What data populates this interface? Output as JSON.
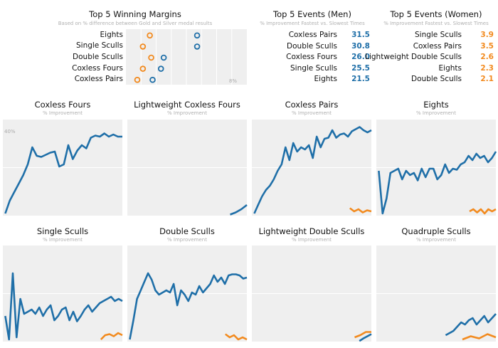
{
  "margins": {
    "title": "Top 5 Winning Margins",
    "subtitle": "Based on % difference between Gold and Silver medal results",
    "axis_max_label": "8%"
  },
  "men": {
    "title": "Top 5  Events (Men)",
    "subtitle": "% Improvement Fastest vs. Slowest Times"
  },
  "women": {
    "title": "Top 5  Events (Women)",
    "subtitle": "% Improvement Fastest vs. Slowest Times"
  },
  "panel_subtitle": "% Improvement",
  "y_tick_label": "40%",
  "colors": {
    "men": "#1f6fa8",
    "women": "#f28a1e",
    "panel_bg": "#efefef",
    "grid": "#ffffff"
  },
  "chart_data": [
    {
      "type": "scatter",
      "id": "winning-margins",
      "categories": [
        "Eights",
        "Single Sculls",
        "Double Sculls",
        "Coxless Fours",
        "Coxless Pairs"
      ],
      "series": [
        {
          "name": "",
          "values": [
            0.9,
            0.4,
            1.0,
            0.4,
            0.0
          ]
        },
        {
          "name": "",
          "values": [
            4.3,
            4.3,
            1.9,
            1.7,
            1.1
          ]
        }
      ],
      "xlim": [
        0,
        8
      ],
      "grid": true
    },
    {
      "type": "table",
      "id": "men-events",
      "rows": [
        {
          "event": "Coxless Pairs",
          "value": "31.5"
        },
        {
          "event": "Double Sculls",
          "value": "30.8"
        },
        {
          "event": "Coxless Fours",
          "value": "26.0"
        },
        {
          "event": "Single Sculls",
          "value": "25.5"
        },
        {
          "event": "Eights",
          "value": "21.5"
        }
      ]
    },
    {
      "type": "table",
      "id": "women-events",
      "rows": [
        {
          "event": "Single Sculls",
          "value": "3.9"
        },
        {
          "event": "Coxless Pairs",
          "value": "3.5"
        },
        {
          "event": "Lightweight Double Sculls",
          "value": "2.6"
        },
        {
          "event": "Eights",
          "value": "2.3"
        },
        {
          "event": "Double Sculls",
          "value": "2.1"
        }
      ]
    },
    {
      "type": "line",
      "panels": [
        {
          "title": "Coxless Fours",
          "men": [
            1,
            7,
            11,
            15,
            19,
            24,
            32,
            28,
            27.5,
            28.5,
            29.5,
            30,
            23,
            24,
            33,
            26.5,
            30.5,
            33,
            31.5,
            36.5,
            37.5,
            37,
            38.5,
            37,
            38,
            37,
            37
          ],
          "women": []
        },
        {
          "title": "Lightweight Coxless Fours",
          "men": [
            0.5,
            1.5,
            3,
            5
          ],
          "women": []
        },
        {
          "title": "Coxless Pairs",
          "men": [
            1,
            5,
            9,
            12,
            14,
            17,
            21,
            24,
            32,
            26,
            34,
            30,
            32,
            31,
            33,
            27,
            37,
            32,
            36,
            36.5,
            40,
            36.5,
            38,
            38.5,
            37,
            39.5,
            40.5,
            41.5,
            40,
            39,
            40
          ],
          "women": [
            3.5,
            2,
            3,
            1.5,
            2.5,
            2
          ]
        },
        {
          "title": "Eights",
          "men": [
            21,
            1,
            8,
            20,
            21,
            22,
            17,
            21,
            19,
            20,
            16.5,
            22,
            18,
            22,
            22,
            17,
            19,
            24,
            20,
            22,
            21.5,
            24,
            25,
            28,
            26,
            29,
            27,
            28,
            25,
            27,
            30
          ],
          "women": [
            2,
            3,
            1.5,
            3,
            1,
            3,
            2,
            3
          ]
        },
        {
          "title": "Single Sculls",
          "men": [
            12,
            1,
            32,
            2,
            20,
            13,
            14,
            15,
            13,
            16,
            12,
            15,
            17,
            10,
            12,
            15,
            16,
            10,
            14,
            9.5,
            12,
            15,
            17,
            14,
            16,
            18,
            19,
            20,
            21,
            19,
            20,
            19
          ],
          "women": [
            1,
            3,
            3.5,
            2.5,
            4,
            3
          ]
        },
        {
          "title": "Double Sculls",
          "men": [
            1,
            10,
            20,
            24,
            28,
            32,
            29,
            24,
            22,
            23,
            24,
            23,
            27,
            17,
            24,
            22,
            19,
            23,
            22,
            26,
            23,
            25,
            27,
            31,
            28,
            30,
            27,
            31,
            31.5,
            31.5,
            31,
            29.5,
            30
          ],
          "women": [
            3.5,
            2,
            3,
            1,
            2,
            1
          ]
        },
        {
          "title": "Lightweight Double Sculls",
          "men": [
            0.3,
            1.5,
            2.5,
            3.5
          ],
          "women": [
            2,
            3,
            4.5,
            4.5
          ]
        },
        {
          "title": "Quadruple Sculls",
          "men": [
            3,
            4,
            5,
            7,
            9,
            8,
            10,
            11,
            8,
            10,
            12,
            9,
            11,
            13
          ],
          "women": [
            1,
            2.5,
            1.5,
            3.5,
            2
          ]
        }
      ],
      "ylim": [
        0,
        45
      ]
    }
  ]
}
